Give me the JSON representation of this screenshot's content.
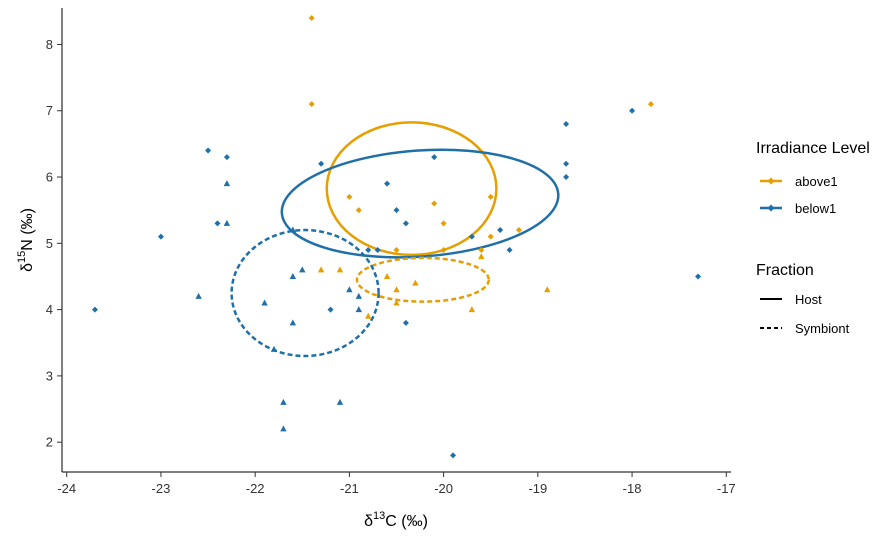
{
  "chart_data": {
    "type": "scatter",
    "title": "",
    "xlabel": {
      "main": "δ",
      "sup": "13",
      "rest": "C (‰)"
    },
    "ylabel": {
      "main": "δ",
      "sup": "15",
      "rest": "N (‰)"
    },
    "xlim": [
      -24.05,
      -16.95
    ],
    "ylim": [
      1.55,
      8.55
    ],
    "xticks": [
      "-24",
      "-23",
      "-22",
      "-21",
      "-20",
      "-19",
      "-18",
      "-17"
    ],
    "yticks": [
      "2",
      "3",
      "4",
      "5",
      "6",
      "7",
      "8"
    ],
    "grid": false,
    "legend_position": "right",
    "colors": {
      "above1": "#E69F00",
      "below1": "#1F6FA8"
    },
    "series": [
      {
        "name": "above1",
        "fraction": "Host",
        "marker": "diamond",
        "points": [
          [
            -21.4,
            8.4
          ],
          [
            -21.4,
            7.1
          ],
          [
            -17.8,
            7.1
          ],
          [
            -21.0,
            5.7
          ],
          [
            -20.9,
            5.5
          ],
          [
            -20.1,
            5.6
          ],
          [
            -19.5,
            5.7
          ],
          [
            -20.0,
            5.3
          ],
          [
            -19.5,
            5.1
          ],
          [
            -19.2,
            5.2
          ],
          [
            -20.5,
            4.9
          ],
          [
            -20.0,
            4.9
          ],
          [
            -19.6,
            4.9
          ]
        ]
      },
      {
        "name": "above1",
        "fraction": "Symbiont",
        "marker": "triangle",
        "points": [
          [
            -21.3,
            4.6
          ],
          [
            -20.6,
            4.5
          ],
          [
            -20.5,
            4.3
          ],
          [
            -20.3,
            4.4
          ],
          [
            -20.5,
            4.1
          ],
          [
            -20.8,
            3.9
          ],
          [
            -19.7,
            4.0
          ],
          [
            -18.9,
            4.3
          ],
          [
            -19.6,
            4.8
          ],
          [
            -21.1,
            4.6
          ]
        ]
      },
      {
        "name": "below1",
        "fraction": "Host",
        "marker": "diamond",
        "points": [
          [
            -22.5,
            6.4
          ],
          [
            -22.3,
            6.3
          ],
          [
            -21.3,
            6.2
          ],
          [
            -20.1,
            6.3
          ],
          [
            -18.7,
            6.8
          ],
          [
            -18.0,
            7.0
          ],
          [
            -18.7,
            6.2
          ],
          [
            -18.7,
            6.0
          ],
          [
            -20.6,
            5.9
          ],
          [
            -23.0,
            5.1
          ],
          [
            -22.4,
            5.3
          ],
          [
            -20.5,
            5.5
          ],
          [
            -20.4,
            5.3
          ],
          [
            -19.7,
            5.1
          ],
          [
            -19.4,
            5.2
          ],
          [
            -19.3,
            4.9
          ],
          [
            -20.7,
            4.9
          ],
          [
            -20.8,
            4.9
          ],
          [
            -17.3,
            4.5
          ],
          [
            -23.7,
            4.0
          ],
          [
            -21.2,
            4.0
          ],
          [
            -20.4,
            3.8
          ],
          [
            -19.9,
            1.8
          ]
        ]
      },
      {
        "name": "below1",
        "fraction": "Symbiont",
        "marker": "triangle",
        "points": [
          [
            -22.3,
            5.9
          ],
          [
            -22.3,
            5.3
          ],
          [
            -21.6,
            5.2
          ],
          [
            -22.6,
            4.2
          ],
          [
            -21.9,
            4.1
          ],
          [
            -21.6,
            4.5
          ],
          [
            -21.5,
            4.6
          ],
          [
            -21.6,
            3.8
          ],
          [
            -21.0,
            4.3
          ],
          [
            -20.9,
            4.0
          ],
          [
            -21.7,
            2.6
          ],
          [
            -21.7,
            2.2
          ],
          [
            -21.1,
            2.6
          ],
          [
            -21.8,
            3.4
          ],
          [
            -20.9,
            4.2
          ]
        ]
      }
    ],
    "ellipses": [
      {
        "series": "above1",
        "fraction": "Host",
        "cx": -20.34,
        "cy": 5.825,
        "rx": 0.9,
        "ry": 1.0,
        "angle": 0
      },
      {
        "series": "below1",
        "fraction": "Host",
        "cx": -20.25,
        "cy": 5.6,
        "rx": 1.47,
        "ry": 0.8,
        "angle": 4
      },
      {
        "series": "above1",
        "fraction": "Symbiont",
        "cx": -20.22,
        "cy": 4.45,
        "rx": 0.7,
        "ry": 0.33,
        "angle": 0
      },
      {
        "series": "below1",
        "fraction": "Symbiont",
        "cx": -21.47,
        "cy": 4.25,
        "rx": 0.78,
        "ry": 0.95,
        "angle": 0
      }
    ],
    "legend": {
      "color_title": "Irradiance Level",
      "color_items": [
        "above1",
        "below1"
      ],
      "linetype_title": "Fraction",
      "linetype_items": [
        {
          "label": "Host",
          "dash": "solid"
        },
        {
          "label": "Symbiont",
          "dash": "dashed"
        }
      ]
    }
  }
}
